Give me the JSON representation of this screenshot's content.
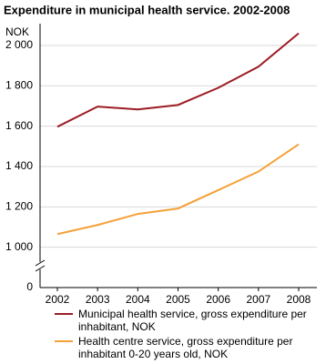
{
  "chart_data": {
    "type": "line",
    "title": "Expenditure in municipal health service. 2002-2008",
    "y_label": "NOK",
    "categories": [
      "2002",
      "2003",
      "2004",
      "2005",
      "2006",
      "2007",
      "2008"
    ],
    "series": [
      {
        "name": "Municipal health service, gross expenditure per inhabitant, NOK",
        "color": "#9b1c23",
        "values": [
          1597,
          1697,
          1683,
          1705,
          1790,
          1895,
          2060
        ]
      },
      {
        "name": "Health centre service, gross expenditure per inhabitant 0-20 years old, NOK",
        "color": "#f5a037",
        "values": [
          1065,
          1110,
          1165,
          1192,
          1283,
          1375,
          1510
        ]
      }
    ],
    "ylim": [
      800,
      2090
    ],
    "yticks": [
      {
        "value": 0,
        "label": "0"
      },
      {
        "value": 1000,
        "label": "1 000"
      },
      {
        "value": 1200,
        "label": "1 200"
      },
      {
        "value": 1400,
        "label": "1 400"
      },
      {
        "value": 1600,
        "label": "1 600"
      },
      {
        "value": 1800,
        "label": "1 800"
      },
      {
        "value": 2000,
        "label": "2 000"
      }
    ],
    "axis_break": true,
    "grid": true
  }
}
